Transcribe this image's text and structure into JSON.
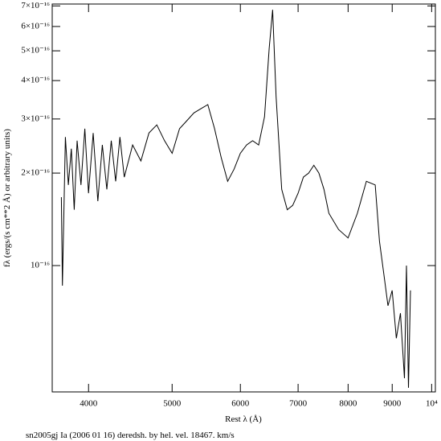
{
  "chart_data": {
    "type": "line",
    "caption": "sn2005gj Ia (2006 01 16) deredsh. by hel. vel. 18467. km/s",
    "x_label": "Rest λ (Å)",
    "y_label": "fλ (ergs/(s cm**2 Å) or arbitrary units)",
    "xscale": "log",
    "yscale": "log",
    "xlim": [
      3630,
      10100
    ],
    "ylim": [
      3.88e-17,
      7.1e-16
    ],
    "xticks": [
      4000,
      5000,
      6000,
      7000,
      8000,
      9000,
      {
        "value": 10000,
        "label": "10⁴"
      }
    ],
    "yticks": [
      {
        "value": 1e-16,
        "label": "10⁻¹⁶"
      },
      {
        "value": 2e-16,
        "label": "2×10⁻¹⁶"
      },
      {
        "value": 3e-16,
        "label": "3×10⁻¹⁶"
      },
      {
        "value": 4e-16,
        "label": "4×10⁻¹⁶"
      },
      {
        "value": 5e-16,
        "label": "5×10⁻¹⁶"
      },
      {
        "value": 6e-16,
        "label": "6×10⁻¹⁶"
      },
      {
        "value": 7e-16,
        "label": "7×10⁻¹⁶"
      }
    ],
    "color": "#000000",
    "x": [
      3720,
      3730,
      3760,
      3790,
      3820,
      3850,
      3880,
      3920,
      3960,
      4000,
      4050,
      4100,
      4150,
      4200,
      4250,
      4300,
      4350,
      4400,
      4500,
      4600,
      4700,
      4800,
      4900,
      5000,
      5100,
      5200,
      5300,
      5400,
      5500,
      5600,
      5700,
      5800,
      5900,
      6000,
      6100,
      6200,
      6300,
      6400,
      6480,
      6540,
      6600,
      6700,
      6800,
      6900,
      7000,
      7100,
      7200,
      7300,
      7400,
      7500,
      7600,
      7800,
      8000,
      8200,
      8400,
      8600,
      8700,
      8800,
      8900,
      9000,
      9100,
      9200,
      9300,
      9350,
      9400,
      9450
    ],
    "values": [
      1.67e-16,
      8.6e-17,
      2.62e-16,
      1.83e-16,
      2.4e-16,
      1.52e-16,
      2.55e-16,
      1.83e-16,
      2.79e-16,
      1.72e-16,
      2.7e-16,
      1.62e-16,
      2.47e-16,
      1.77e-16,
      2.55e-16,
      1.88e-16,
      2.62e-16,
      1.94e-16,
      2.47e-16,
      2.19e-16,
      2.7e-16,
      2.87e-16,
      2.55e-16,
      2.32e-16,
      2.79e-16,
      2.96e-16,
      3.14e-16,
      3.24e-16,
      3.34e-16,
      2.79e-16,
      2.25e-16,
      1.88e-16,
      2.06e-16,
      2.32e-16,
      2.47e-16,
      2.55e-16,
      2.47e-16,
      3.05e-16,
      5.09e-16,
      6.8e-16,
      3.55e-16,
      1.77e-16,
      1.52e-16,
      1.57e-16,
      1.72e-16,
      1.94e-16,
      2e-16,
      2.12e-16,
      2e-16,
      1.77e-16,
      1.48e-16,
      1.31e-16,
      1.23e-16,
      1.48e-16,
      1.88e-16,
      1.83e-16,
      1.2e-16,
      9.4e-17,
      7.4e-17,
      8.3e-17,
      5.8e-17,
      7e-17,
      4.3e-17,
      1e-16,
      4e-17,
      8.3e-17
    ]
  }
}
